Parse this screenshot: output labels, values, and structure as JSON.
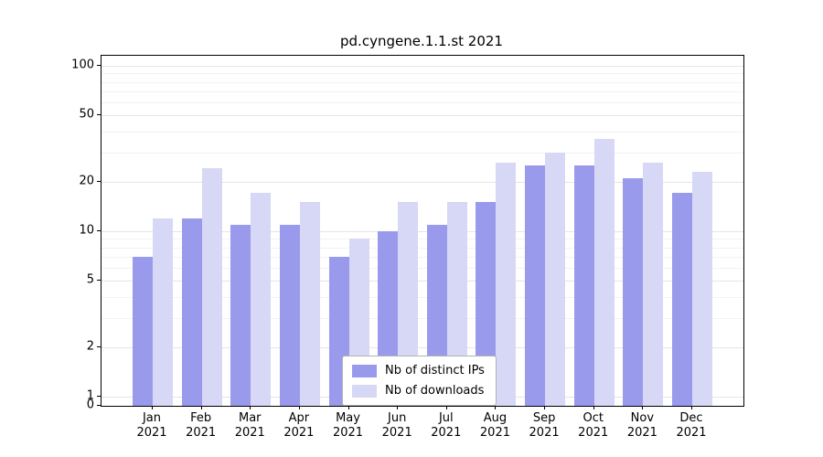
{
  "title": "pd.cyngene.1.1.st 2021",
  "chart_data": {
    "type": "bar",
    "scale": "symlog",
    "title": "pd.cyngene.1.1.st 2021",
    "categories": [
      "Jan",
      "Feb",
      "Mar",
      "Apr",
      "May",
      "Jun",
      "Jul",
      "Aug",
      "Sep",
      "Oct",
      "Nov",
      "Dec"
    ],
    "year_label": "2021",
    "series": [
      {
        "name": "Nb of distinct IPs",
        "color": "#9a9aed",
        "values": [
          7,
          12,
          11,
          11,
          7,
          10,
          11,
          15,
          25,
          25,
          21,
          17
        ]
      },
      {
        "name": "Nb of downloads",
        "color": "#d7d7f6",
        "values": [
          12,
          24,
          17,
          15,
          9,
          15,
          15,
          26,
          30,
          36,
          26,
          23
        ]
      }
    ],
    "yticks": [
      0,
      1,
      2,
      5,
      10,
      20,
      50,
      100
    ],
    "ylim": [
      0,
      115
    ],
    "xlabel": "",
    "ylabel": "",
    "grid": true,
    "legend_position": "bottom-center"
  }
}
